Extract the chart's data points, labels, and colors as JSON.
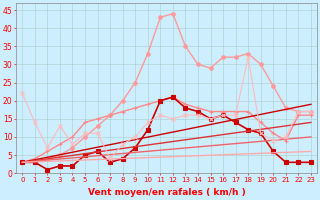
{
  "bg_color": "#cceeff",
  "grid_color": "#aacccc",
  "xlabel": "Vent moyen/en rafales ( km/h )",
  "xlim": [
    -0.5,
    23.5
  ],
  "ylim": [
    0,
    47
  ],
  "yticks": [
    0,
    5,
    10,
    15,
    20,
    25,
    30,
    35,
    40,
    45
  ],
  "xticks": [
    0,
    1,
    2,
    3,
    4,
    5,
    6,
    7,
    8,
    9,
    10,
    11,
    12,
    13,
    14,
    15,
    16,
    17,
    18,
    19,
    20,
    21,
    22,
    23
  ],
  "lines": [
    {
      "x": [
        0,
        1,
        2,
        3,
        4,
        5,
        6,
        7,
        8,
        9,
        10,
        11,
        12,
        13,
        14,
        15,
        16,
        17,
        18,
        19,
        20,
        21,
        22,
        23
      ],
      "y": [
        3,
        3,
        4,
        5,
        7,
        10,
        13,
        16,
        20,
        25,
        33,
        43,
        44,
        35,
        30,
        29,
        32,
        32,
        33,
        30,
        24,
        18,
        17,
        17
      ],
      "color": "#ff9999",
      "marker": "o",
      "ms": 2.5,
      "lw": 1.0,
      "ls": "-"
    },
    {
      "x": [
        0,
        1,
        2,
        3,
        4,
        5,
        6,
        7,
        8,
        9,
        10,
        11,
        12,
        13,
        14,
        15,
        16,
        17,
        18,
        19,
        20,
        21,
        22,
        23
      ],
      "y": [
        3,
        4,
        6,
        8,
        10,
        14,
        15,
        16,
        17,
        18,
        19,
        20,
        21,
        19,
        18,
        17,
        17,
        17,
        17,
        14,
        11,
        9,
        16,
        16
      ],
      "color": "#ff8888",
      "marker": "+",
      "ms": 3,
      "lw": 1.0,
      "ls": "-"
    },
    {
      "x": [
        0,
        1,
        2,
        3,
        4,
        5,
        6,
        7,
        8,
        9,
        10,
        11,
        12,
        13,
        14,
        15,
        16,
        17,
        18,
        19,
        20,
        21,
        22,
        23
      ],
      "y": [
        3,
        3,
        1,
        2,
        2,
        5,
        6,
        3,
        4,
        7,
        12,
        20,
        21,
        18,
        17,
        15,
        16,
        14,
        12,
        11,
        6,
        3,
        3,
        3
      ],
      "color": "#cc0000",
      "marker": "s",
      "ms": 2.5,
      "lw": 1.2,
      "ls": "-"
    },
    {
      "x": [
        0,
        23
      ],
      "y": [
        3,
        19
      ],
      "color": "#cc0000",
      "marker": null,
      "ms": 0,
      "lw": 1.0,
      "ls": "-"
    },
    {
      "x": [
        0,
        23
      ],
      "y": [
        3,
        14
      ],
      "color": "#dd3333",
      "marker": null,
      "ms": 0,
      "lw": 1.0,
      "ls": "-"
    },
    {
      "x": [
        0,
        23
      ],
      "y": [
        3,
        10
      ],
      "color": "#ee6666",
      "marker": null,
      "ms": 0,
      "lw": 1.0,
      "ls": "-"
    },
    {
      "x": [
        0,
        23
      ],
      "y": [
        3,
        6
      ],
      "color": "#ffaaaa",
      "marker": null,
      "ms": 0,
      "lw": 1.0,
      "ls": "-"
    },
    {
      "x": [
        0,
        1,
        2,
        3,
        4,
        5,
        6,
        7,
        8,
        9,
        10,
        11,
        12,
        13,
        14,
        15,
        16,
        17,
        18,
        19,
        20,
        21,
        22,
        23
      ],
      "y": [
        22,
        14,
        7,
        13,
        8,
        11,
        11,
        4,
        8,
        10,
        14,
        16,
        15,
        16,
        16,
        15,
        16,
        16,
        32,
        11,
        9,
        10,
        17,
        17
      ],
      "color": "#ffbbbb",
      "marker": "x",
      "ms": 3,
      "lw": 0.8,
      "ls": "-"
    }
  ]
}
